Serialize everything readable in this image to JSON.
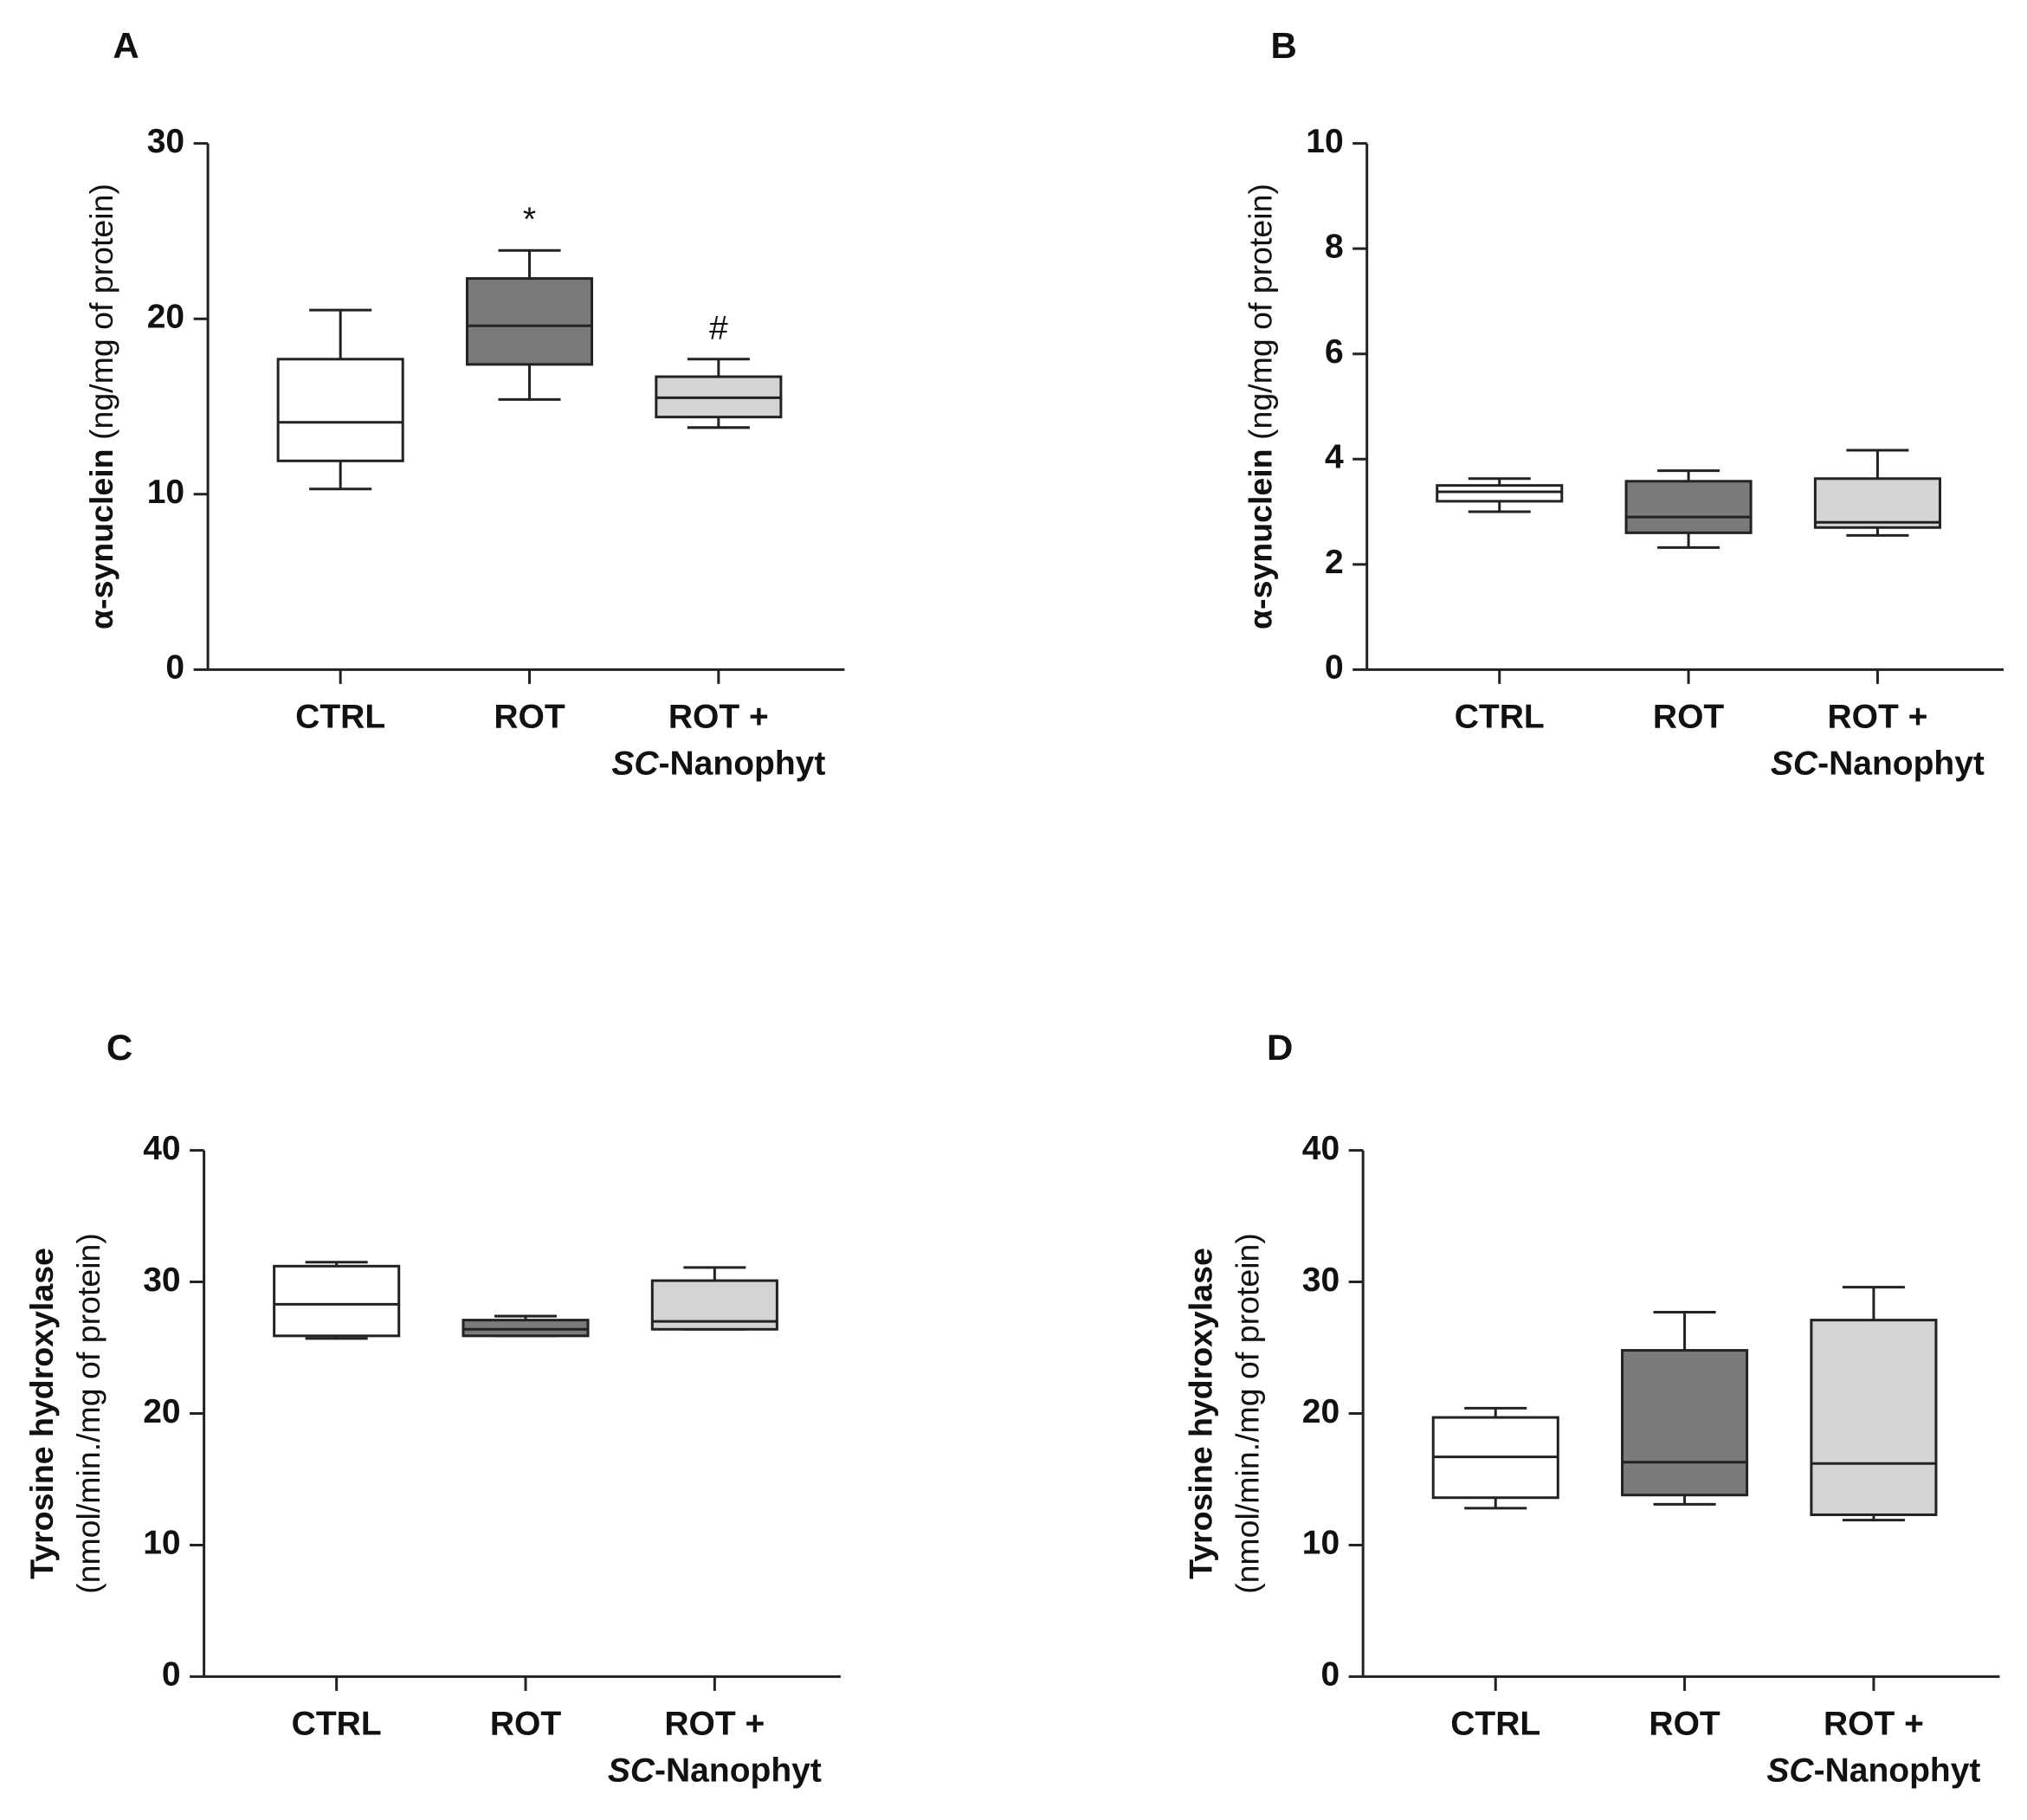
{
  "chart_data": [
    {
      "type": "box",
      "panel": "A",
      "ylabel": {
        "bold": "α-synuclein",
        "normal": " (ng/mg of protein)"
      },
      "categories": [
        "CTRL",
        "ROT",
        {
          "line1": "ROT +",
          "line2_italic": "SC",
          "line2": "-Nanophyt"
        }
      ],
      "boxes": [
        {
          "values": [
            10.3,
            11.9,
            14.1,
            17.7,
            20.5
          ],
          "color": "#ffffff"
        },
        {
          "values": [
            15.4,
            17.4,
            19.6,
            22.3,
            23.9
          ],
          "color": "#7a7a7a"
        },
        {
          "values": [
            13.8,
            14.4,
            15.5,
            16.7,
            17.7
          ],
          "color": "#d4d4d4"
        }
      ],
      "annotations": [
        {
          "text": "*",
          "category": 1
        },
        {
          "text": "#",
          "category": 2
        }
      ],
      "ylim": [
        0,
        30
      ],
      "yticks": [
        0,
        10,
        20,
        30
      ]
    },
    {
      "type": "box",
      "panel": "B",
      "ylabel": {
        "bold": "α-synuclein",
        "normal": " (ng/mg of protein)"
      },
      "categories": [
        "CTRL",
        "ROT",
        {
          "line1": "ROT +",
          "line2_italic": "SC",
          "line2": "-Nanophyt"
        }
      ],
      "boxes": [
        {
          "values": [
            3.0,
            3.2,
            3.38,
            3.5,
            3.63
          ],
          "color": "#ffffff"
        },
        {
          "values": [
            2.32,
            2.6,
            2.9,
            3.58,
            3.78
          ],
          "color": "#7a7a7a"
        },
        {
          "values": [
            2.55,
            2.7,
            2.8,
            3.63,
            4.17
          ],
          "color": "#d4d4d4"
        }
      ],
      "ylim": [
        0,
        10
      ],
      "yticks": [
        0,
        2,
        4,
        6,
        8,
        10
      ]
    },
    {
      "type": "box",
      "panel": "C",
      "ylabel": {
        "bold": "Tyrosine hydroxylase",
        "normal": "(nmol/min./mg of protein)"
      },
      "categories": [
        "CTRL",
        "ROT",
        {
          "line1": "ROT +",
          "line2_italic": "SC",
          "line2": "-Nanophyt"
        }
      ],
      "boxes": [
        {
          "values": [
            25.7,
            25.9,
            28.3,
            31.2,
            31.5
          ],
          "color": "#ffffff"
        },
        {
          "values": [
            25.9,
            25.9,
            26.4,
            27.1,
            27.4
          ],
          "color": "#7a7a7a"
        },
        {
          "values": [
            26.4,
            26.4,
            27.0,
            30.1,
            31.1
          ],
          "color": "#d4d4d4"
        }
      ],
      "ylim": [
        0,
        40
      ],
      "yticks": [
        0,
        10,
        20,
        30,
        40
      ]
    },
    {
      "type": "box",
      "panel": "D",
      "ylabel": {
        "bold": "Tyrosine hydroxylase",
        "normal": "(nmol/min./mg of protein)"
      },
      "categories": [
        "CTRL",
        "ROT",
        {
          "line1": "ROT +",
          "line2_italic": "SC",
          "line2": "-Nanophyt"
        }
      ],
      "boxes": [
        {
          "values": [
            12.8,
            13.6,
            16.7,
            19.7,
            20.4
          ],
          "color": "#ffffff"
        },
        {
          "values": [
            13.1,
            13.8,
            16.3,
            24.8,
            27.7
          ],
          "color": "#7a7a7a"
        },
        {
          "values": [
            11.9,
            12.3,
            16.2,
            27.1,
            29.6
          ],
          "color": "#d4d4d4"
        }
      ],
      "ylim": [
        0,
        40
      ],
      "yticks": [
        0,
        10,
        20,
        30,
        40
      ]
    }
  ]
}
